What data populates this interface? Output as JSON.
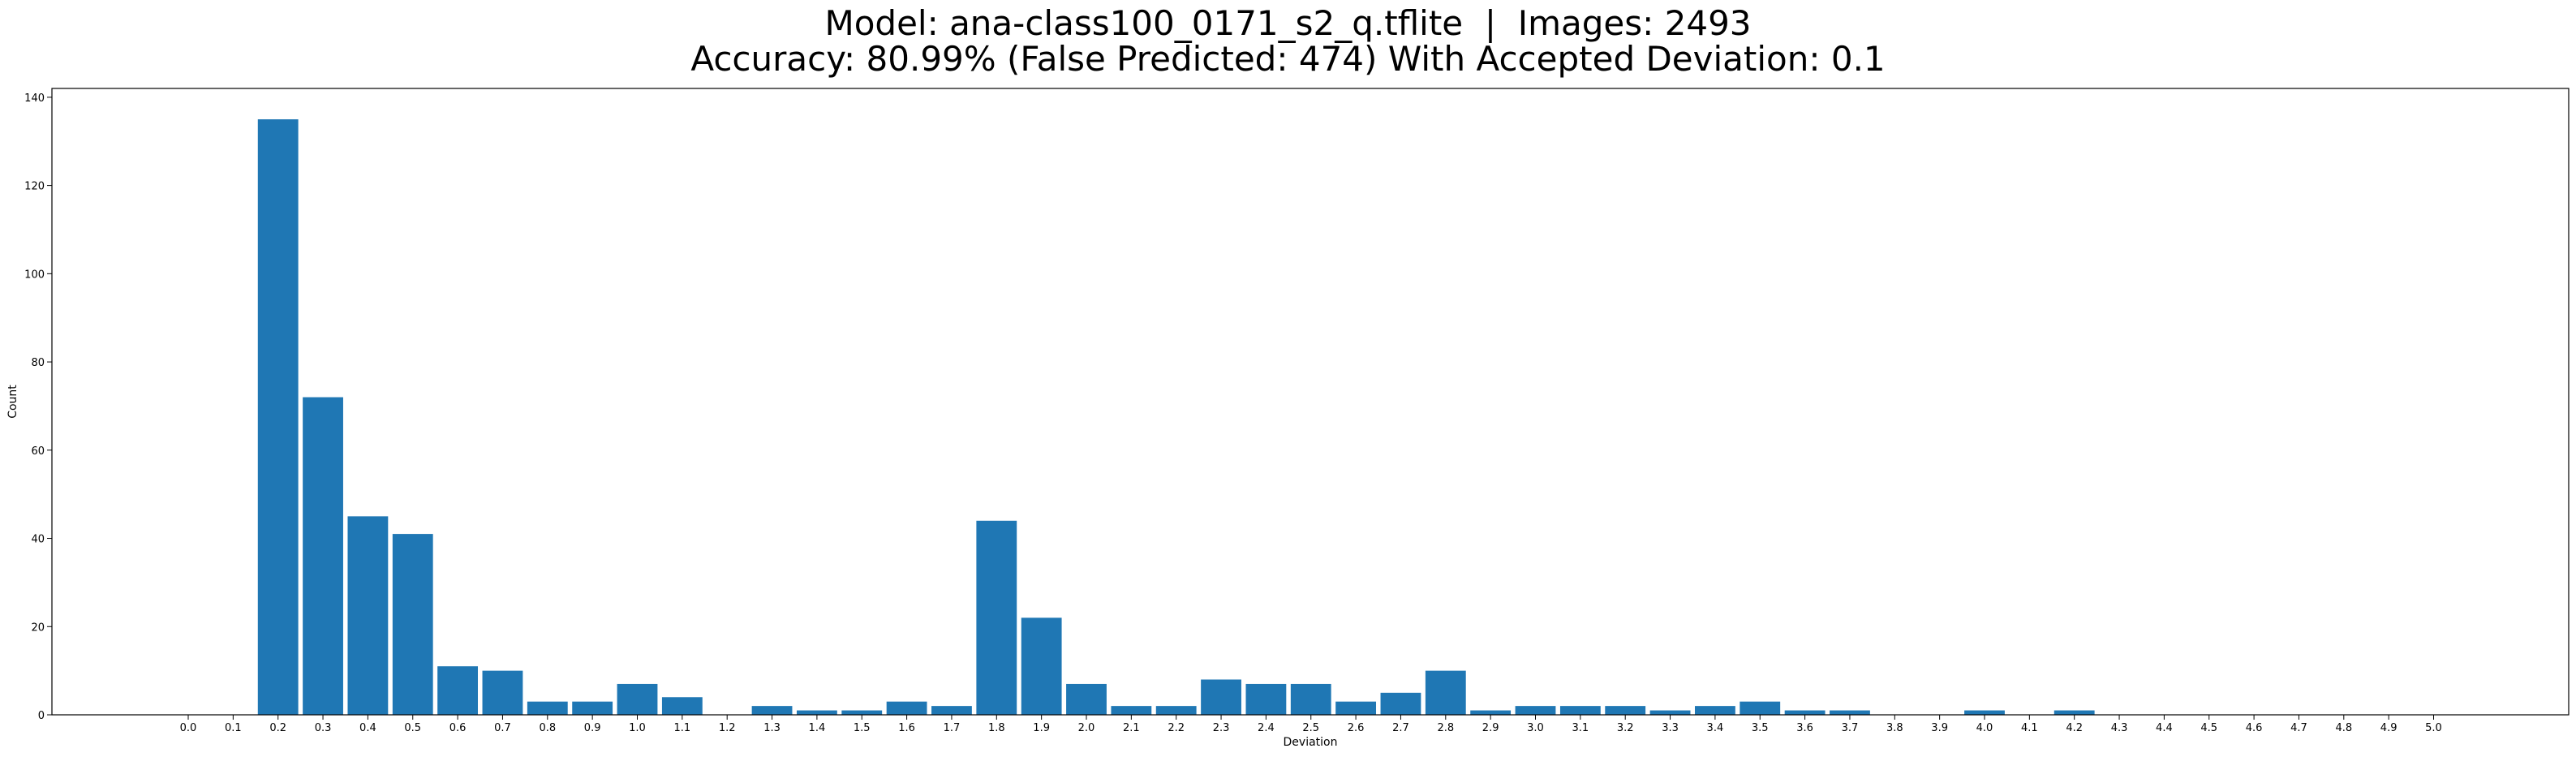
{
  "title_line1": "Model: ana-class100_0171_s2_q.tflite  |  Images: 2493",
  "title_line2": "Accuracy: 80.99% (False Predicted: 474) With Accepted Deviation: 0.1",
  "chart_data": {
    "type": "bar",
    "xlabel": "Deviation",
    "ylabel": "Count",
    "ylim": [
      0,
      142
    ],
    "yticks": [
      0,
      20,
      40,
      60,
      80,
      100,
      120,
      140
    ],
    "grid": false,
    "color": "#1f77b4",
    "categories": [
      "0.0",
      "0.1",
      "0.2",
      "0.3",
      "0.4",
      "0.5",
      "0.6",
      "0.7",
      "0.8",
      "0.9",
      "1.0",
      "1.1",
      "1.2",
      "1.3",
      "1.4",
      "1.5",
      "1.6",
      "1.7",
      "1.8",
      "1.9",
      "2.0",
      "2.1",
      "2.2",
      "2.3",
      "2.4",
      "2.5",
      "2.6",
      "2.7",
      "2.8",
      "2.9",
      "3.0",
      "3.1",
      "3.2",
      "3.3",
      "3.4",
      "3.5",
      "3.6",
      "3.7",
      "3.8",
      "3.9",
      "4.0",
      "4.1",
      "4.2",
      "4.3",
      "4.4",
      "4.5",
      "4.6",
      "4.7",
      "4.8",
      "4.9",
      "5.0"
    ],
    "values": [
      0,
      0,
      135,
      72,
      45,
      41,
      11,
      10,
      3,
      3,
      7,
      4,
      0,
      2,
      1,
      1,
      3,
      2,
      44,
      22,
      7,
      2,
      2,
      8,
      7,
      7,
      3,
      5,
      10,
      1,
      2,
      2,
      2,
      1,
      2,
      3,
      1,
      1,
      0,
      0,
      1,
      0,
      1,
      0,
      0,
      0,
      0,
      0,
      0,
      0,
      0
    ]
  }
}
